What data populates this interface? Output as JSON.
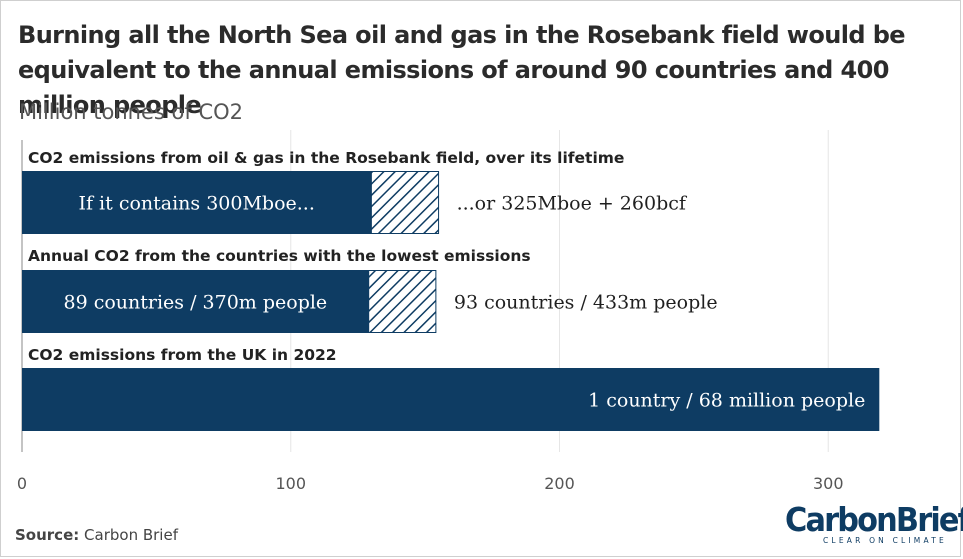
{
  "header": {
    "title": "Burning all the North Sea oil and gas in the Rosebank field would be equivalent to the annual emissions of around 90 countries and 400 million people",
    "subtitle": "Million tonnes of CO2"
  },
  "footer": {
    "source_label": "Source:",
    "source_text": "Carbon Brief",
    "logo_text": "CarbonBrief",
    "logo_tagline": "CLEAR ON CLIMATE"
  },
  "colors": {
    "bar": "#0e3c63",
    "hatch": "#0e3c63",
    "grid": "#e6e6e6",
    "axis": "#555555"
  },
  "chart_data": {
    "type": "bar",
    "orientation": "horizontal",
    "xlim": [
      0,
      320
    ],
    "xticks": [
      0,
      100,
      200,
      300
    ],
    "grid": true,
    "groups": [
      {
        "label": "CO2 emissions from oil & gas in the Rosebank field, over its lifetime",
        "solid_value": 130,
        "solid_label": "If it contains 300Mboe...",
        "hatched_value": 155,
        "hatched_label": "...or 325Mboe + 260bcf"
      },
      {
        "label": "Annual CO2 from the countries with the lowest emissions",
        "solid_value": 129,
        "solid_label": "89 countries / 370m people",
        "hatched_value": 154,
        "hatched_label": "93 countries / 433m people"
      },
      {
        "label": "CO2 emissions from the UK in 2022",
        "solid_value": 319,
        "solid_label": "1 country / 68 million people",
        "hatched_value": null,
        "hatched_label": ""
      }
    ]
  }
}
